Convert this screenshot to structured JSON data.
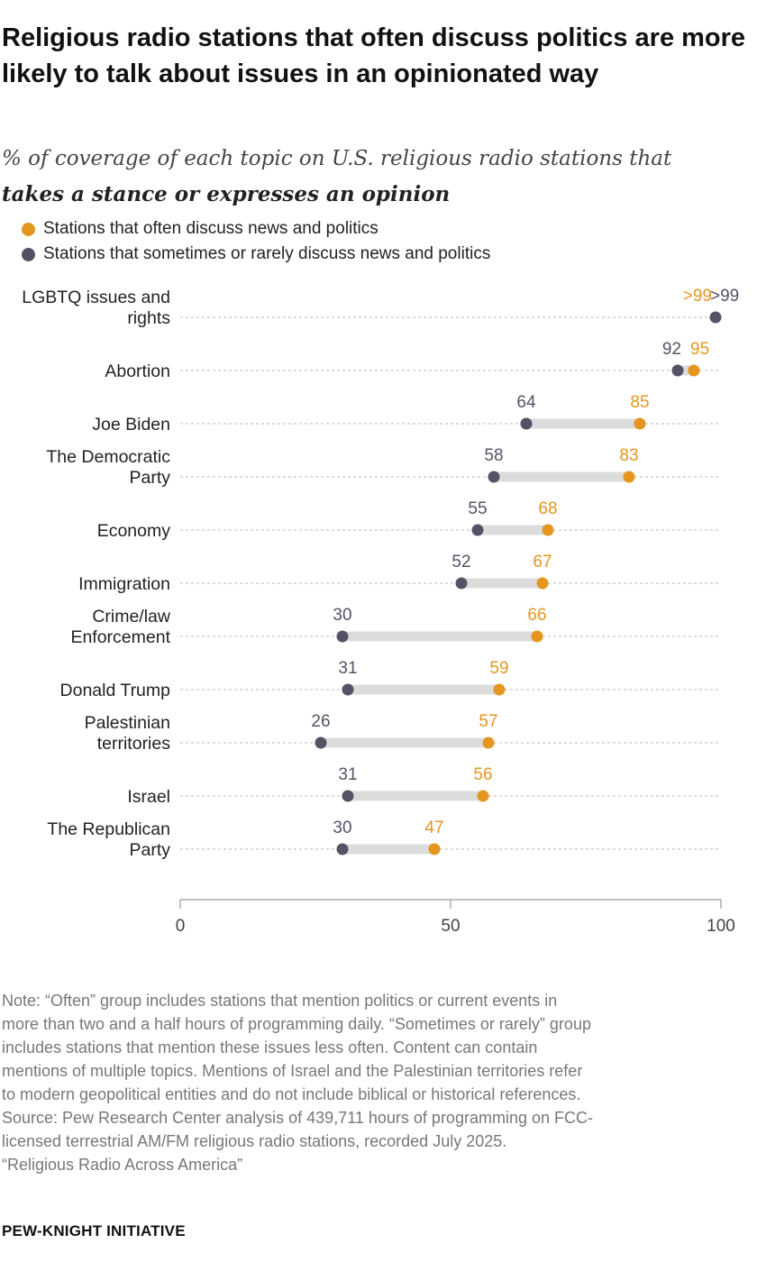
{
  "title": "Religious radio stations that often discuss politics are more likely to talk about issues in an opinionated way",
  "subtitle_line1": "% of coverage of each topic on U.S. religious radio stations that",
  "subtitle_line2": "takes a stance or expresses an opinion",
  "colors": {
    "often": "#e5961f",
    "sometimes": "#575166",
    "range": "#dcdcdc",
    "grid": "#d0d0d0"
  },
  "chart_data": {
    "type": "dot-range",
    "series": [
      {
        "name": "Stations that often discuss news and politics",
        "color": "#e5961f"
      },
      {
        "name": "Stations that sometimes or rarely discuss news and politics",
        "color": "#575166"
      }
    ],
    "categories": [
      {
        "label": [
          "LGBTQ issues and",
          "rights"
        ],
        "often": 99,
        "sometimes": 99,
        "often_label": ">99",
        "sometimes_label": ">99"
      },
      {
        "label": [
          "Abortion"
        ],
        "often": 95,
        "sometimes": 92,
        "often_label": "95",
        "sometimes_label": "92"
      },
      {
        "label": [
          "Joe Biden"
        ],
        "often": 85,
        "sometimes": 64,
        "often_label": "85",
        "sometimes_label": "64"
      },
      {
        "label": [
          "The Democratic",
          "Party"
        ],
        "often": 83,
        "sometimes": 58,
        "often_label": "83",
        "sometimes_label": "58"
      },
      {
        "label": [
          "Economy"
        ],
        "often": 68,
        "sometimes": 55,
        "often_label": "68",
        "sometimes_label": "55"
      },
      {
        "label": [
          "Immigration"
        ],
        "often": 67,
        "sometimes": 52,
        "often_label": "67",
        "sometimes_label": "52"
      },
      {
        "label": [
          "Crime/law",
          "Enforcement"
        ],
        "often": 66,
        "sometimes": 30,
        "often_label": "66",
        "sometimes_label": "30"
      },
      {
        "label": [
          "Donald Trump"
        ],
        "often": 59,
        "sometimes": 31,
        "often_label": "59",
        "sometimes_label": "31"
      },
      {
        "label": [
          "Palestinian",
          "territories"
        ],
        "often": 57,
        "sometimes": 26,
        "often_label": "57",
        "sometimes_label": "26"
      },
      {
        "label": [
          "Israel"
        ],
        "often": 56,
        "sometimes": 31,
        "often_label": "56",
        "sometimes_label": "31"
      },
      {
        "label": [
          "The Republican",
          "Party"
        ],
        "often": 47,
        "sometimes": 30,
        "often_label": "47",
        "sometimes_label": "30"
      }
    ],
    "xlim": [
      0,
      100
    ],
    "xticks": [
      0,
      50,
      100
    ],
    "xlabel": "",
    "ylabel": ""
  },
  "note": [
    "Note: “Often” group includes stations that mention politics or current events in",
    "more than two and a half hours of programming daily. “Sometimes or rarely” group",
    "includes stations that mention these issues less often. Content can contain",
    "mentions of multiple topics. Mentions of Israel and the Palestinian territories refer",
    "to modern geopolitical entities and do not include biblical or historical references."
  ],
  "source": [
    "Source: Pew Research Center analysis of 439,711 hours of programming on FCC-",
    "licensed terrestrial AM/FM religious radio stations, recorded July 2025.",
    "“Religious Radio Across America”"
  ],
  "footer": "PEW-KNIGHT INITIATIVE"
}
